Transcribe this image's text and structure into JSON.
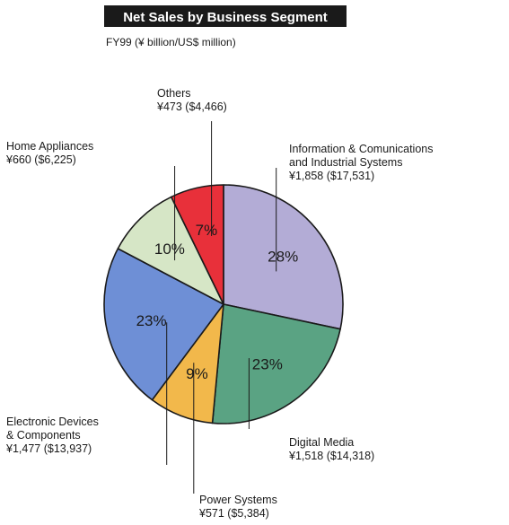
{
  "chart_data": {
    "type": "pie",
    "title": "Net Sales by Business Segment",
    "subtitle": "FY99 (¥ billion/US$ million)",
    "slices": [
      {
        "name": "Information & Comunications and Industrial Systems",
        "label_lines": [
          "Information & Comunications",
          "and Industrial Systems",
          "¥1,858 ($17,531)"
        ],
        "value": 1858,
        "value_usd": 17531,
        "pct_label": "28%",
        "color": "#b3acd6"
      },
      {
        "name": "Digital Media",
        "label_lines": [
          "Digital Media",
          "¥1,518 ($14,318)"
        ],
        "value": 1518,
        "value_usd": 14318,
        "pct_label": "23%",
        "color": "#5aa383"
      },
      {
        "name": "Power Systems",
        "label_lines": [
          "Power Systems",
          "¥571 ($5,384)"
        ],
        "value": 571,
        "value_usd": 5384,
        "pct_label": "9%",
        "color": "#f2b84b"
      },
      {
        "name": "Electronic Devices & Components",
        "label_lines": [
          "Electronic Devices",
          "& Components",
          "¥1,477 ($13,937)"
        ],
        "value": 1477,
        "value_usd": 13937,
        "pct_label": "23%",
        "color": "#6e8fd6"
      },
      {
        "name": "Home Appliances",
        "label_lines": [
          "Home Appliances",
          "¥660 ($6,225)"
        ],
        "value": 660,
        "value_usd": 6225,
        "pct_label": "10%",
        "color": "#d6e6c6"
      },
      {
        "name": "Others",
        "label_lines": [
          "Others",
          "¥473 ($4,466)"
        ],
        "value": 473,
        "value_usd": 4466,
        "pct_label": "7%",
        "color": "#e8303a"
      }
    ]
  }
}
